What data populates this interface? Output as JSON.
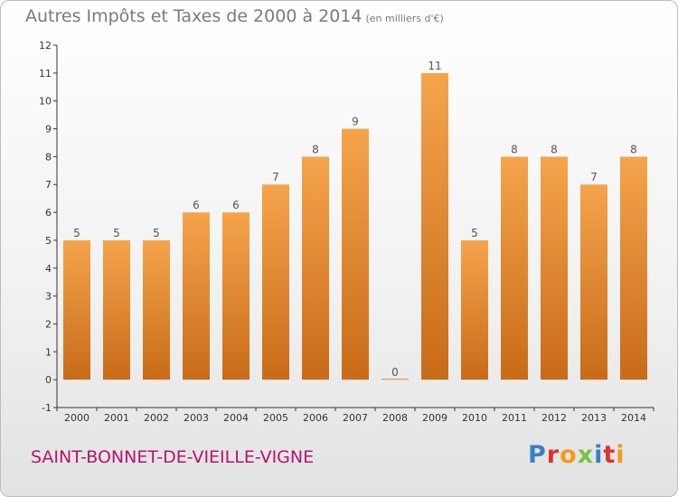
{
  "title": {
    "main": "Autres Impôts et Taxes de 2000 à 2014",
    "unit": "(en milliers d'€)"
  },
  "place_name": "SAINT-BONNET-DE-VIEILLE-VIGNE",
  "logo": {
    "text": "Proxiti",
    "letter_colors": [
      "#3a7fc4",
      "#e0322a",
      "#f39a1c",
      "#7cc242",
      "#3a7fc4",
      "#e0322a",
      "#f39a1c"
    ]
  },
  "colors": {
    "bar_light": "#f5a44c",
    "bar_dark": "#c86b18",
    "axis": "#333333"
  },
  "chart_data": {
    "type": "bar",
    "title": "Autres Impôts et Taxes de 2000 à 2014",
    "subtitle": "(en milliers d'€)",
    "xlabel": "",
    "ylabel": "",
    "categories": [
      "2000",
      "2001",
      "2002",
      "2003",
      "2004",
      "2005",
      "2006",
      "2007",
      "2008",
      "2009",
      "2010",
      "2011",
      "2012",
      "2013",
      "2014"
    ],
    "values": [
      5,
      5,
      5,
      6,
      6,
      7,
      8,
      9,
      0,
      11,
      5,
      8,
      8,
      7,
      8
    ],
    "data_labels": [
      "5",
      "5",
      "5",
      "6",
      "6",
      "7",
      "8",
      "9",
      "0",
      "11",
      "5",
      "8",
      "8",
      "7",
      "8"
    ],
    "ylim": [
      -1,
      12
    ],
    "y_ticks": [
      -1,
      0,
      1,
      2,
      3,
      4,
      5,
      6,
      7,
      8,
      9,
      10,
      11,
      12
    ],
    "y_tick_labels": [
      "-1",
      "0",
      "1",
      "2",
      "3",
      "4",
      "5",
      "6",
      "7",
      "8",
      "9",
      "10",
      "11",
      "12"
    ],
    "grid": false,
    "legend": "none"
  }
}
